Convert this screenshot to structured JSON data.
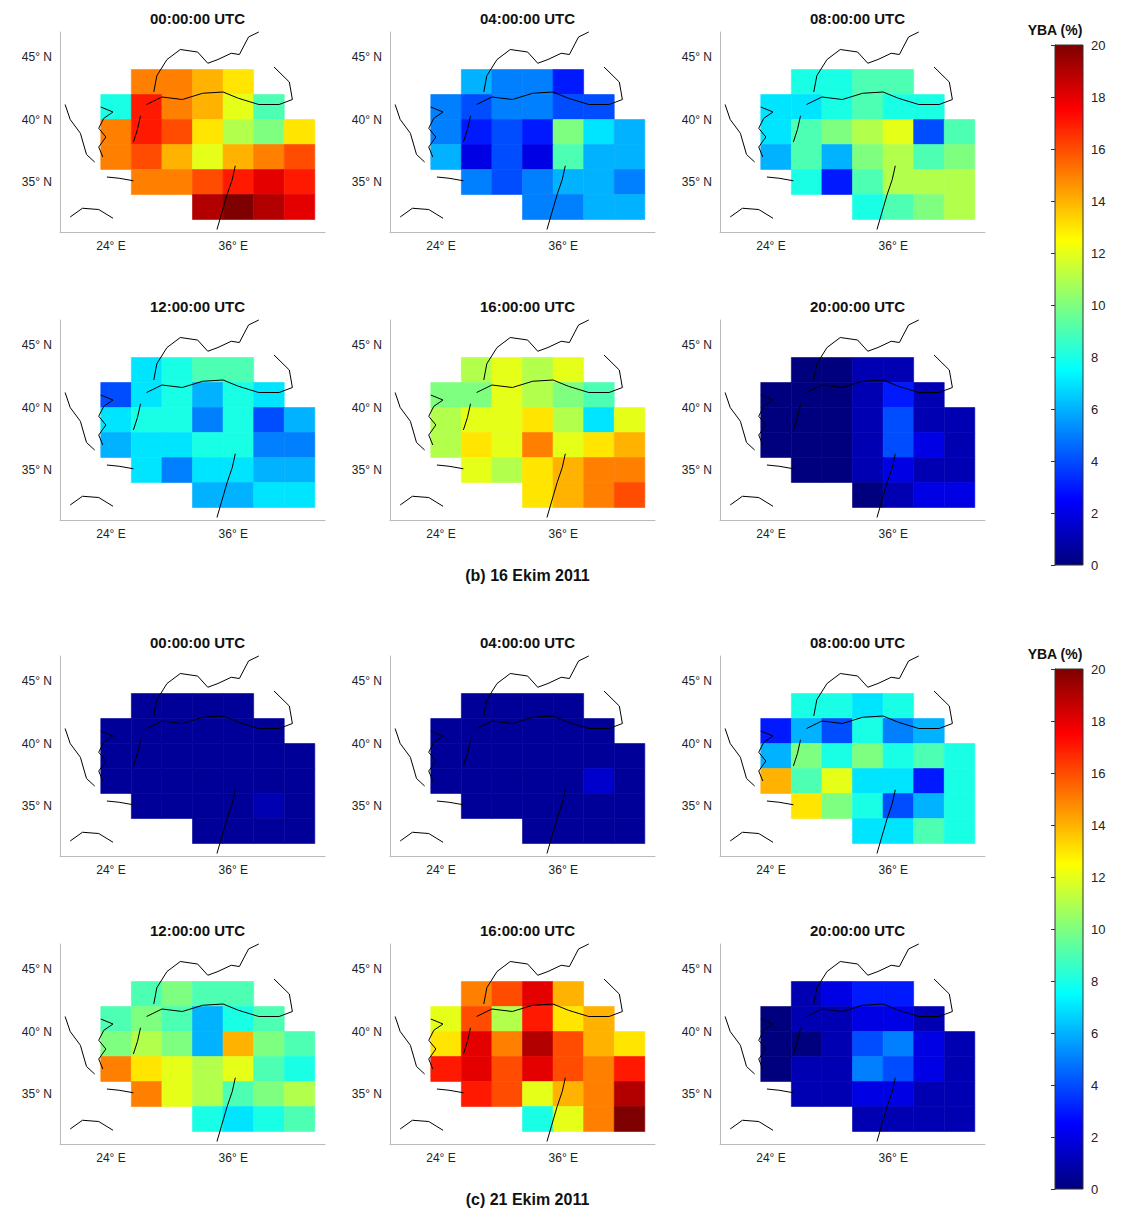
{
  "chart_data": {
    "type": "heatmap",
    "grid": false,
    "xlim": [
      19,
      45
    ],
    "ylim": [
      31,
      47
    ],
    "xticks": [
      {
        "value": 24,
        "label": "24° E"
      },
      {
        "value": 36,
        "label": "36° E"
      }
    ],
    "yticks": [
      {
        "value": 35,
        "label": "35° N"
      },
      {
        "value": 40,
        "label": "40° N"
      },
      {
        "value": 45,
        "label": "45° N"
      }
    ],
    "lon": [
      24.5,
      27.5,
      30.5,
      33.5,
      36.5,
      39.5,
      42.5
    ],
    "lat": [
      43,
      41,
      39,
      37,
      35,
      33
    ],
    "groups": [
      {
        "caption": "(b) 16 Ekim 2011",
        "colorbar": {
          "title": "YBA (%)",
          "range": [
            0,
            20
          ],
          "ticks": [
            0,
            2,
            4,
            6,
            8,
            10,
            12,
            14,
            16,
            18,
            20
          ]
        },
        "panels": [
          {
            "title": "00:00:00 UTC",
            "values": [
              [
                null,
                15,
                15,
                14,
                13,
                null,
                null
              ],
              [
                8,
                17,
                15,
                14,
                12,
                9,
                null
              ],
              [
                15,
                17,
                16,
                13,
                11,
                10,
                13
              ],
              [
                15,
                16,
                14,
                12,
                14,
                15,
                16
              ],
              [
                null,
                15,
                15,
                16,
                17,
                18,
                17
              ],
              [
                null,
                null,
                null,
                19,
                20,
                19,
                18
              ]
            ]
          },
          {
            "title": "04:00:00 UTC",
            "values": [
              [
                null,
                6,
                5,
                5,
                3,
                null,
                null
              ],
              [
                5,
                4,
                5,
                5,
                4,
                4,
                null
              ],
              [
                5,
                3,
                4,
                3,
                10,
                7,
                6
              ],
              [
                6,
                2,
                4,
                2,
                9,
                6,
                6
              ],
              [
                null,
                5,
                4,
                5,
                6,
                6,
                5
              ],
              [
                null,
                null,
                null,
                5,
                5,
                6,
                6
              ]
            ]
          },
          {
            "title": "08:00:00 UTC",
            "values": [
              [
                null,
                8,
                8,
                9,
                9,
                null,
                null
              ],
              [
                7,
                7,
                8,
                9,
                8,
                8,
                null
              ],
              [
                7,
                9,
                10,
                11,
                12,
                4,
                9
              ],
              [
                6,
                9,
                6,
                10,
                11,
                9,
                10
              ],
              [
                null,
                8,
                3,
                9,
                11,
                11,
                11
              ],
              [
                null,
                null,
                null,
                8,
                9,
                10,
                11
              ]
            ]
          },
          {
            "title": "12:00:00 UTC",
            "values": [
              [
                null,
                7,
                8,
                9,
                9,
                null,
                null
              ],
              [
                4,
                7,
                8,
                6,
                8,
                7,
                null
              ],
              [
                7,
                8,
                8,
                5,
                8,
                4,
                6
              ],
              [
                6,
                7,
                7,
                8,
                8,
                5,
                5
              ],
              [
                null,
                7,
                5,
                7,
                7,
                6,
                6
              ],
              [
                null,
                null,
                null,
                6,
                6,
                7,
                7
              ]
            ]
          },
          {
            "title": "16:00:00 UTC",
            "values": [
              [
                null,
                11,
                12,
                11,
                12,
                null,
                null
              ],
              [
                10,
                10,
                12,
                11,
                10,
                9,
                null
              ],
              [
                11,
                12,
                12,
                13,
                11,
                7,
                12
              ],
              [
                11,
                13,
                12,
                15,
                12,
                13,
                14
              ],
              [
                null,
                12,
                11,
                13,
                14,
                15,
                15
              ],
              [
                null,
                null,
                null,
                13,
                14,
                15,
                16
              ]
            ]
          },
          {
            "title": "20:00:00 UTC",
            "values": [
              [
                null,
                0,
                0,
                1,
                1,
                null,
                null
              ],
              [
                0,
                0,
                0,
                1,
                3,
                1,
                null
              ],
              [
                0,
                0,
                0,
                1,
                4,
                1,
                1
              ],
              [
                0,
                0,
                0,
                1,
                4,
                2,
                1
              ],
              [
                null,
                0,
                0,
                1,
                2,
                1,
                1
              ],
              [
                null,
                null,
                null,
                0,
                1,
                2,
                2
              ]
            ]
          }
        ]
      },
      {
        "caption": "(c) 21 Ekim 2011",
        "colorbar": {
          "title": "YBA (%)",
          "range": [
            0,
            20
          ],
          "ticks": [
            0,
            2,
            4,
            6,
            8,
            10,
            12,
            14,
            16,
            18,
            20
          ]
        },
        "panels": [
          {
            "title": "00:00:00 UTC",
            "values": [
              [
                null,
                0.5,
                0.5,
                0.5,
                0.5,
                null,
                null
              ],
              [
                0.5,
                0.5,
                0.5,
                0.5,
                0.5,
                0.5,
                null
              ],
              [
                0.5,
                0.5,
                0.5,
                0.5,
                0.5,
                0.5,
                0.5
              ],
              [
                0.5,
                0.5,
                0.5,
                0.5,
                0.5,
                0.5,
                0.5
              ],
              [
                null,
                0.5,
                0.5,
                0.5,
                0.5,
                1,
                0.5
              ],
              [
                null,
                null,
                null,
                0.5,
                0.5,
                0.5,
                0.5
              ]
            ]
          },
          {
            "title": "04:00:00 UTC",
            "values": [
              [
                null,
                0.5,
                0.5,
                0.5,
                0.5,
                null,
                null
              ],
              [
                0.5,
                0.5,
                0.5,
                0.5,
                0.5,
                0.5,
                null
              ],
              [
                0.5,
                0.5,
                0.5,
                0.5,
                0.5,
                0.5,
                0.5
              ],
              [
                0.5,
                0.5,
                0.5,
                0.5,
                0.5,
                1.5,
                0.5
              ],
              [
                null,
                0.5,
                0.5,
                0.5,
                0.5,
                0.5,
                0.5
              ],
              [
                null,
                null,
                null,
                0.5,
                0.5,
                0.5,
                0.5
              ]
            ]
          },
          {
            "title": "08:00:00 UTC",
            "values": [
              [
                null,
                8,
                8,
                7,
                8,
                null,
                null
              ],
              [
                3,
                6,
                4,
                8,
                5,
                6,
                null
              ],
              [
                6,
                10,
                8,
                10,
                8,
                9,
                8
              ],
              [
                14,
                9,
                12,
                7,
                7,
                3,
                8
              ],
              [
                null,
                13,
                10,
                8,
                4,
                6,
                8
              ],
              [
                null,
                null,
                null,
                7,
                7,
                9,
                8
              ]
            ]
          },
          {
            "title": "12:00:00 UTC",
            "values": [
              [
                null,
                9,
                10,
                9,
                9,
                null,
                null
              ],
              [
                9,
                10,
                9,
                6,
                8,
                9,
                null
              ],
              [
                10,
                11,
                10,
                6,
                14,
                10,
                9
              ],
              [
                15,
                13,
                12,
                11,
                12,
                9,
                8
              ],
              [
                null,
                15,
                12,
                11,
                9,
                10,
                11
              ],
              [
                null,
                null,
                null,
                8,
                7,
                8,
                9
              ]
            ]
          },
          {
            "title": "16:00:00 UTC",
            "values": [
              [
                null,
                15,
                16,
                18,
                14,
                null,
                null
              ],
              [
                12,
                16,
                11,
                17,
                13,
                14,
                null
              ],
              [
                13,
                18,
                15,
                19,
                16,
                14,
                13
              ],
              [
                17,
                18,
                16,
                18,
                16,
                15,
                17
              ],
              [
                null,
                17,
                16,
                12,
                14,
                15,
                19
              ],
              [
                null,
                null,
                null,
                8,
                12,
                15,
                20
              ]
            ]
          },
          {
            "title": "20:00:00 UTC",
            "values": [
              [
                null,
                1,
                2,
                3,
                3,
                null,
                null
              ],
              [
                0,
                1,
                1,
                2,
                2,
                1,
                null
              ],
              [
                0,
                0,
                1,
                4,
                5,
                2,
                1
              ],
              [
                0,
                1,
                1,
                5,
                4,
                2,
                1
              ],
              [
                null,
                1,
                1,
                2,
                2,
                1,
                1
              ],
              [
                null,
                null,
                null,
                1,
                1,
                1,
                1
              ]
            ]
          }
        ]
      }
    ]
  }
}
